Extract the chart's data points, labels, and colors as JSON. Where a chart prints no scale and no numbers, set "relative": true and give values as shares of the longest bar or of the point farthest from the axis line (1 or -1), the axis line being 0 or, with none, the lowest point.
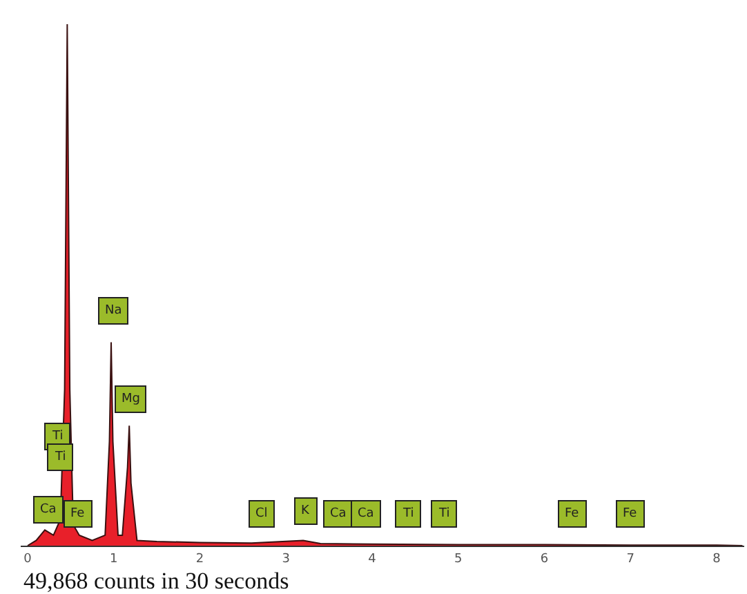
{
  "chart_data": {
    "type": "area",
    "relative": true,
    "x": [
      0,
      0.1,
      0.2,
      0.3,
      0.38,
      0.43,
      0.46,
      0.49,
      0.53,
      0.6,
      0.75,
      0.9,
      0.95,
      0.97,
      0.99,
      1.05,
      1.1,
      1.16,
      1.18,
      1.2,
      1.27,
      1.5,
      2.0,
      2.6,
      3.2,
      3.4,
      4,
      5,
      6,
      7,
      8,
      8.3
    ],
    "series": [
      {
        "color": "#e8202a",
        "values": [
          0,
          0.01,
          0.03,
          0.02,
          0.05,
          0.3,
          1,
          0.3,
          0.04,
          0.02,
          0.01,
          0.02,
          0.2,
          0.39,
          0.2,
          0.02,
          0.02,
          0.15,
          0.23,
          0.12,
          0.01,
          0.008,
          0.006,
          0.005,
          0.01,
          0.004,
          0.003,
          0.002,
          0.002,
          0.001,
          0.001,
          0
        ]
      }
    ],
    "xlim": [
      -0.08,
      8.32
    ],
    "xticks": [
      0,
      1,
      2,
      3,
      4,
      5,
      6,
      7,
      8
    ],
    "annotations": [
      {
        "text": "Ti",
        "x": 0.34,
        "y": 0.21
      },
      {
        "text": "Ti",
        "x": 0.38,
        "y": 0.17
      },
      {
        "text": "Ca",
        "x": 0.24,
        "y": 0.07
      },
      {
        "text": "Fe",
        "x": 0.59,
        "y": 0.06
      },
      {
        "text": "Na",
        "x": 0.99,
        "y": 0.45
      },
      {
        "text": "Mg",
        "x": 1.2,
        "y": 0.28
      },
      {
        "text": "Cl",
        "x": 2.72,
        "y": 0.06
      },
      {
        "text": "K",
        "x": 3.23,
        "y": 0.065
      },
      {
        "text": "Ca",
        "x": 3.61,
        "y": 0.06
      },
      {
        "text": "Ca",
        "x": 3.93,
        "y": 0.06
      },
      {
        "text": "Ti",
        "x": 4.42,
        "y": 0.06
      },
      {
        "text": "Ti",
        "x": 4.84,
        "y": 0.06
      },
      {
        "text": "Fe",
        "x": 6.33,
        "y": 0.06
      },
      {
        "text": "Fe",
        "x": 7.0,
        "y": 0.06
      },
      "49,868 counts in 30 seconds"
    ]
  }
}
